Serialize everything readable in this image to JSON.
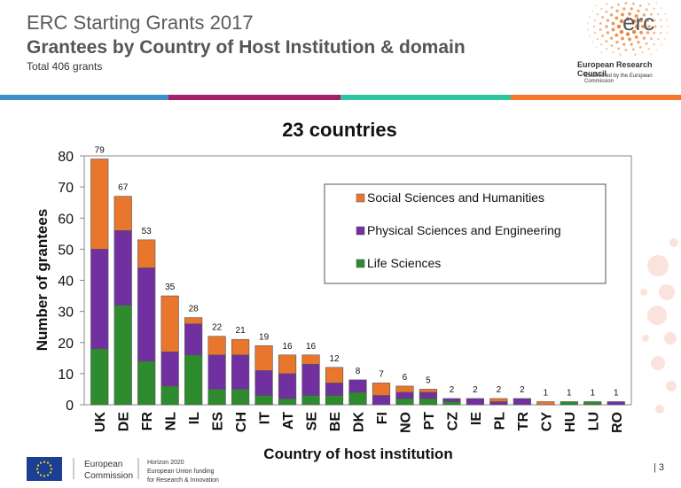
{
  "header": {
    "title": "ERC Starting Grants 2017",
    "subtitle": "Grantees by Country of Host Institution & domain",
    "total": "Total 406 grants"
  },
  "erc": {
    "logo_text": "erc",
    "name": "European Research Council",
    "established": "Established by the European Commission"
  },
  "strip_colors": [
    "#3c8dc8",
    "#a5206a",
    "#2ec4a0",
    "#f47a2a"
  ],
  "footer": {
    "ec_line1": "European",
    "ec_line2": "Commission",
    "horizon_line1": "Horizon 2020",
    "horizon_line2": "European Union funding",
    "horizon_line3": "for Research & Innovation",
    "page_number": "| 3"
  },
  "chart_data": {
    "type": "bar",
    "stacked": true,
    "title": "23 countries",
    "xlabel": "Country of host institution",
    "ylabel": "Number of grantees",
    "ylim": [
      0,
      80
    ],
    "yticks": [
      0,
      10,
      20,
      30,
      40,
      50,
      60,
      70,
      80
    ],
    "categories": [
      "UK",
      "DE",
      "FR",
      "NL",
      "IL",
      "ES",
      "CH",
      "IT",
      "AT",
      "SE",
      "BE",
      "DK",
      "FI",
      "NO",
      "PT",
      "CZ",
      "IE",
      "PL",
      "TR",
      "CY",
      "HU",
      "LU",
      "RO"
    ],
    "totals": [
      79,
      67,
      53,
      35,
      28,
      22,
      21,
      19,
      16,
      16,
      12,
      8,
      7,
      6,
      5,
      2,
      2,
      2,
      2,
      1,
      1,
      1,
      1
    ],
    "series": [
      {
        "name": "Life Sciences",
        "color": "#2e8b2e",
        "values": [
          18,
          32,
          14,
          6,
          16,
          5,
          5,
          3,
          2,
          3,
          3,
          4,
          0,
          2,
          2,
          1,
          0,
          0,
          0,
          0,
          1,
          1,
          0
        ]
      },
      {
        "name": "Physical Sciences and Engineering",
        "color": "#7030a0",
        "values": [
          32,
          24,
          30,
          11,
          10,
          11,
          11,
          8,
          8,
          10,
          4,
          4,
          3,
          2,
          2,
          1,
          2,
          1,
          2,
          0,
          0,
          0,
          1
        ]
      },
      {
        "name": "Social Sciences and Humanities",
        "color": "#e8762d",
        "values": [
          29,
          11,
          9,
          18,
          2,
          6,
          5,
          8,
          6,
          3,
          5,
          0,
          4,
          2,
          1,
          0,
          0,
          1,
          0,
          1,
          0,
          0,
          0
        ]
      }
    ],
    "legend_order": [
      2,
      1,
      0
    ],
    "legend_position": "top-right",
    "grid": false
  }
}
